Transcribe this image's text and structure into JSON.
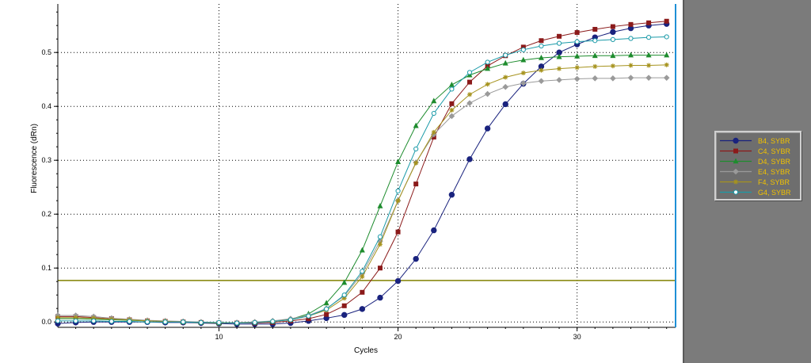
{
  "chart_data": {
    "type": "line",
    "title": "",
    "xlabel": "Cycles",
    "ylabel": "Fluorescence (dRn)",
    "xlim": [
      1,
      35.5
    ],
    "ylim": [
      -0.01,
      0.59
    ],
    "xticks": [
      10,
      20,
      30
    ],
    "yticks": [
      0.0,
      0.1,
      0.2,
      0.3,
      0.4,
      0.5
    ],
    "ytick_labels": [
      "0.0",
      "0.1",
      "0.2",
      "0.3",
      "0.4",
      "0.5"
    ],
    "grid": true,
    "threshold": 0.077,
    "threshold_color": "#808000",
    "cursor_x": 35.5,
    "cursor_color": "#1e90d6",
    "legend_position": "right",
    "x": [
      1,
      2,
      3,
      4,
      5,
      6,
      7,
      8,
      9,
      10,
      11,
      12,
      13,
      14,
      15,
      16,
      17,
      18,
      19,
      20,
      21,
      22,
      23,
      24,
      25,
      26,
      27,
      28,
      29,
      30,
      31,
      32,
      33,
      34,
      35
    ],
    "series": [
      {
        "name": "B4, SYBR",
        "color": "#1a237e",
        "marker": "circle-filled",
        "values": [
          -0.003,
          -0.001,
          0.0,
          0.0,
          0.0,
          0.0,
          -0.001,
          -0.001,
          -0.002,
          -0.003,
          -0.004,
          -0.004,
          -0.004,
          -0.002,
          0.002,
          0.007,
          0.013,
          0.024,
          0.045,
          0.076,
          0.117,
          0.17,
          0.236,
          0.302,
          0.359,
          0.404,
          0.442,
          0.474,
          0.5,
          0.515,
          0.528,
          0.538,
          0.545,
          0.55,
          0.553
        ]
      },
      {
        "name": "C4, SYBR",
        "color": "#8b1a1a",
        "marker": "square-filled",
        "values": [
          0.01,
          0.01,
          0.008,
          0.006,
          0.004,
          0.002,
          0.001,
          0.0,
          -0.001,
          -0.002,
          -0.002,
          -0.002,
          -0.001,
          0.002,
          0.006,
          0.014,
          0.03,
          0.055,
          0.1,
          0.167,
          0.256,
          0.343,
          0.405,
          0.445,
          0.475,
          0.494,
          0.51,
          0.522,
          0.53,
          0.537,
          0.543,
          0.548,
          0.552,
          0.555,
          0.558
        ]
      },
      {
        "name": "D4, SYBR",
        "color": "#1e8c2e",
        "marker": "triangle-filled",
        "values": [
          0.006,
          0.006,
          0.005,
          0.004,
          0.003,
          0.002,
          0.001,
          0.0,
          -0.001,
          -0.002,
          -0.002,
          -0.001,
          0.001,
          0.005,
          0.015,
          0.035,
          0.073,
          0.133,
          0.215,
          0.297,
          0.364,
          0.41,
          0.44,
          0.458,
          0.47,
          0.48,
          0.486,
          0.49,
          0.492,
          0.493,
          0.494,
          0.494,
          0.495,
          0.495,
          0.495
        ]
      },
      {
        "name": "E4, SYBR",
        "color": "#9a9a9a",
        "marker": "diamond-filled",
        "values": [
          0.012,
          0.012,
          0.01,
          0.007,
          0.005,
          0.003,
          0.002,
          0.001,
          0.0,
          -0.001,
          -0.001,
          0.0,
          0.002,
          0.006,
          0.012,
          0.025,
          0.048,
          0.09,
          0.15,
          0.225,
          0.296,
          0.348,
          0.382,
          0.406,
          0.423,
          0.436,
          0.443,
          0.447,
          0.449,
          0.451,
          0.452,
          0.452,
          0.453,
          0.453,
          0.453
        ]
      },
      {
        "name": "F4, SYBR",
        "color": "#a6931e",
        "marker": "star",
        "values": [
          0.008,
          0.008,
          0.007,
          0.005,
          0.004,
          0.002,
          0.001,
          0.0,
          -0.001,
          -0.002,
          -0.002,
          -0.001,
          0.001,
          0.004,
          0.011,
          0.022,
          0.044,
          0.084,
          0.144,
          0.225,
          0.295,
          0.352,
          0.393,
          0.422,
          0.441,
          0.454,
          0.462,
          0.467,
          0.47,
          0.472,
          0.474,
          0.475,
          0.476,
          0.476,
          0.477
        ]
      },
      {
        "name": "G4, SYBR",
        "color": "#1a9aa8",
        "marker": "circle-open",
        "values": [
          0.002,
          0.002,
          0.002,
          0.001,
          0.001,
          0.0,
          0.0,
          0.0,
          -0.001,
          -0.001,
          -0.002,
          -0.001,
          0.001,
          0.004,
          0.011,
          0.024,
          0.05,
          0.094,
          0.158,
          0.243,
          0.321,
          0.387,
          0.432,
          0.463,
          0.482,
          0.495,
          0.505,
          0.512,
          0.517,
          0.52,
          0.522,
          0.524,
          0.526,
          0.528,
          0.529
        ]
      }
    ]
  }
}
